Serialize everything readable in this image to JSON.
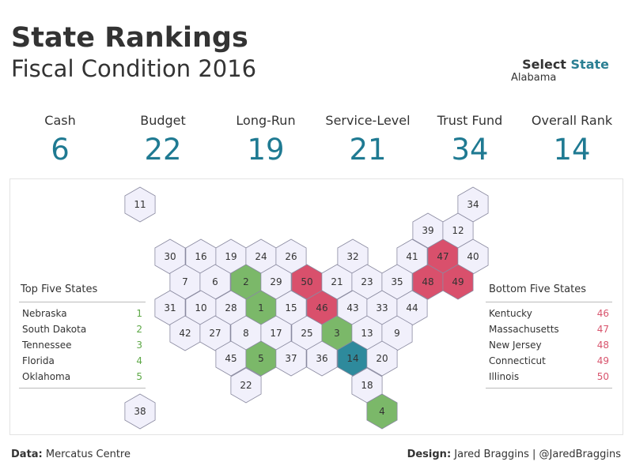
{
  "header": {
    "title": "State Rankings",
    "subtitle": "Fiscal Condition 2016",
    "select_label_1": "Select ",
    "select_label_2": "State",
    "selected_state": "Alabama"
  },
  "kpis": [
    {
      "label": "Cash",
      "value": "6"
    },
    {
      "label": "Budget",
      "value": "22"
    },
    {
      "label": "Long-Run",
      "value": "19"
    },
    {
      "label": "Service-Level",
      "value": "21"
    },
    {
      "label": "Trust Fund",
      "value": "34"
    },
    {
      "label": "Overall Rank",
      "value": "14"
    }
  ],
  "top_five": {
    "title": "Top Five States",
    "items": [
      {
        "state": "Nebraska",
        "rank": "1"
      },
      {
        "state": "South Dakota",
        "rank": "2"
      },
      {
        "state": "Tennessee",
        "rank": "3"
      },
      {
        "state": "Florida",
        "rank": "4"
      },
      {
        "state": "Oklahoma",
        "rank": "5"
      }
    ]
  },
  "bottom_five": {
    "title": "Bottom Five States",
    "items": [
      {
        "state": "Kentucky",
        "rank": "46"
      },
      {
        "state": "Massachusetts",
        "rank": "47"
      },
      {
        "state": "New Jersey",
        "rank": "48"
      },
      {
        "state": "Connecticut",
        "rank": "49"
      },
      {
        "state": "Illinois",
        "rank": "50"
      }
    ]
  },
  "hex_ranks": {
    "row0": [
      "11",
      "34"
    ],
    "row1": [
      "39",
      "12"
    ],
    "row2": [
      "30",
      "16",
      "19",
      "24",
      "26",
      "32",
      "41",
      "47",
      "40"
    ],
    "row3": [
      "7",
      "6",
      "2",
      "29",
      "50",
      "21",
      "23",
      "35",
      "48",
      "49"
    ],
    "row4": [
      "31",
      "10",
      "28",
      "1",
      "15",
      "46",
      "43",
      "33",
      "44"
    ],
    "row5": [
      "42",
      "27",
      "8",
      "17",
      "25",
      "3",
      "13",
      "9"
    ],
    "row6": [
      "45",
      "5",
      "37",
      "36",
      "14",
      "20"
    ],
    "row7": [
      "22",
      "18"
    ],
    "row8": [
      "38",
      "4"
    ]
  },
  "colors": {
    "default_fill": "#f1f0fb",
    "top_fill": "#7bb869",
    "bottom_fill": "#d9506c",
    "selected_fill": "#2e8a9c",
    "accent": "#1f7a92"
  },
  "footer": {
    "left_label": "Data:",
    "left_value": "Mercatus Centre",
    "right_label": "Design:",
    "right_value": "Jared Braggins | @JaredBraggins"
  }
}
